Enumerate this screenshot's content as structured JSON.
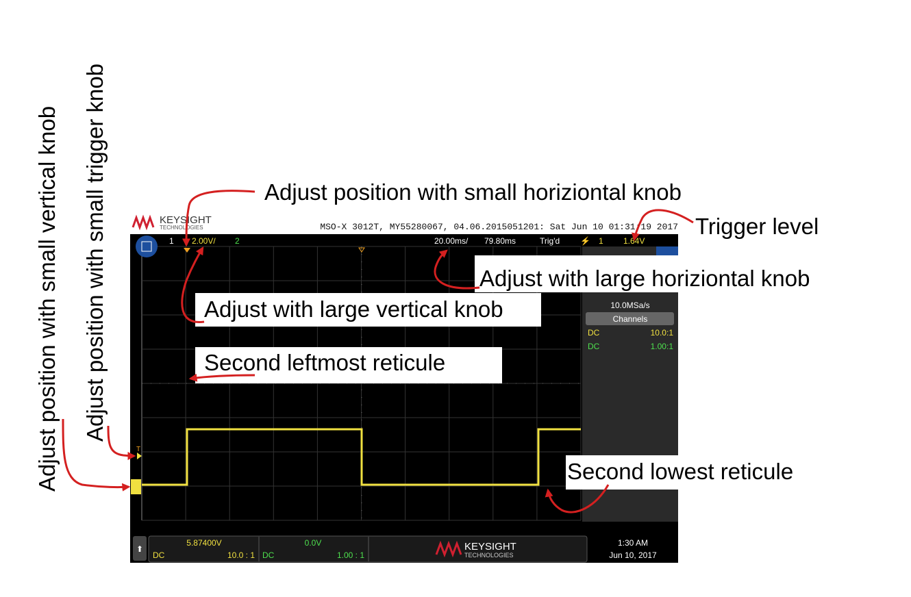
{
  "annotations": {
    "horizontal_position": "Adjust position with small horiziontal knob",
    "trigger_level": "Trigger level",
    "horizontal_scale": "Adjust with large horiziontal knob",
    "vertical_scale": "Adjust with large vertical knob",
    "second_leftmost": "Second leftmost reticule",
    "second_lowest": "Second lowest reticule",
    "vertical_position": "Adjust position with small vertical knob",
    "trigger_position": "Adjust position with small trigger knob"
  },
  "header": {
    "brand": "KEYSIGHT",
    "brand_sub": "TECHNOLOGIES",
    "info": "MSO-X 3012T, MY55280067, 04.06.2015051201: Sat Jun 10 01:31:19 2017"
  },
  "status_bar": {
    "ch1": "1",
    "ch1_scale": "2.00V/",
    "ch2": "2",
    "timebase": "20.00ms/",
    "delay": "79.80ms",
    "trigger_state": "Trig'd",
    "trigger_source": "1",
    "trigger_level": "1.64V"
  },
  "side_panel": {
    "sample_rate": "10.0MSa/s",
    "channels_button": "Channels",
    "rows": [
      [
        "DC",
        "10.0:1"
      ],
      [
        "DC",
        "1.00:1"
      ]
    ]
  },
  "markers": {
    "trigger": "T"
  },
  "bottom_bar": {
    "ch1_offset": "5.87400V",
    "ch1_coupling": "DC",
    "ch1_probe": "10.0 : 1",
    "ch2_offset": "0.0V",
    "ch2_coupling": "DC",
    "ch2_probe": "1.00 : 1",
    "brand": "KEYSIGHT",
    "brand_sub": "TECHNOLOGIES",
    "time": "1:30 AM",
    "date": "Jun 10, 2017"
  }
}
